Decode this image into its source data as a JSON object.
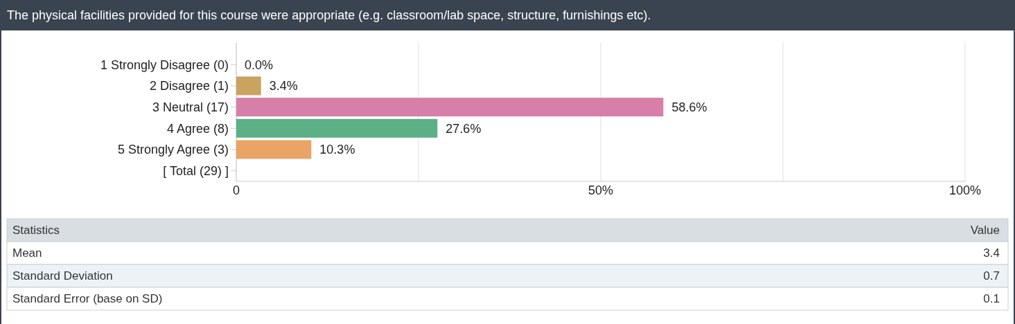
{
  "chart_data": {
    "type": "bar",
    "orientation": "horizontal",
    "title": "The physical facilities provided for this course were appropriate (e.g. classroom/lab space, structure, furnishings etc).",
    "categories": [
      "1 Strongly Disagree (0)",
      "2 Disagree (1)",
      "3 Neutral (17)",
      "4 Agree (8)",
      "5 Strongly Agree (3)",
      "[ Total (29) ]"
    ],
    "values": [
      0,
      3.4,
      58.6,
      27.6,
      10.3,
      null
    ],
    "colors": [
      "#5b8ed6",
      "#c9a461",
      "#d77fa9",
      "#5bb086",
      "#e9a466",
      null
    ],
    "value_labels": [
      "0.0%",
      "3.4%",
      "58.6%",
      "27.6%",
      "10.3%",
      null
    ],
    "xlim": [
      0,
      100
    ],
    "xticks": [
      0,
      {
        "value": 25,
        "label": null
      },
      {
        "value": 50,
        "label": "50%"
      },
      {
        "value": 75,
        "label": null
      },
      {
        "value": 100,
        "label": "100%"
      }
    ],
    "grid": "x",
    "annotations": [
      "Statistics",
      "Value",
      "Mean",
      "3.4",
      "Standard Deviation",
      "0.7",
      "Standard Error (base on SD)",
      "0.1"
    ]
  }
}
